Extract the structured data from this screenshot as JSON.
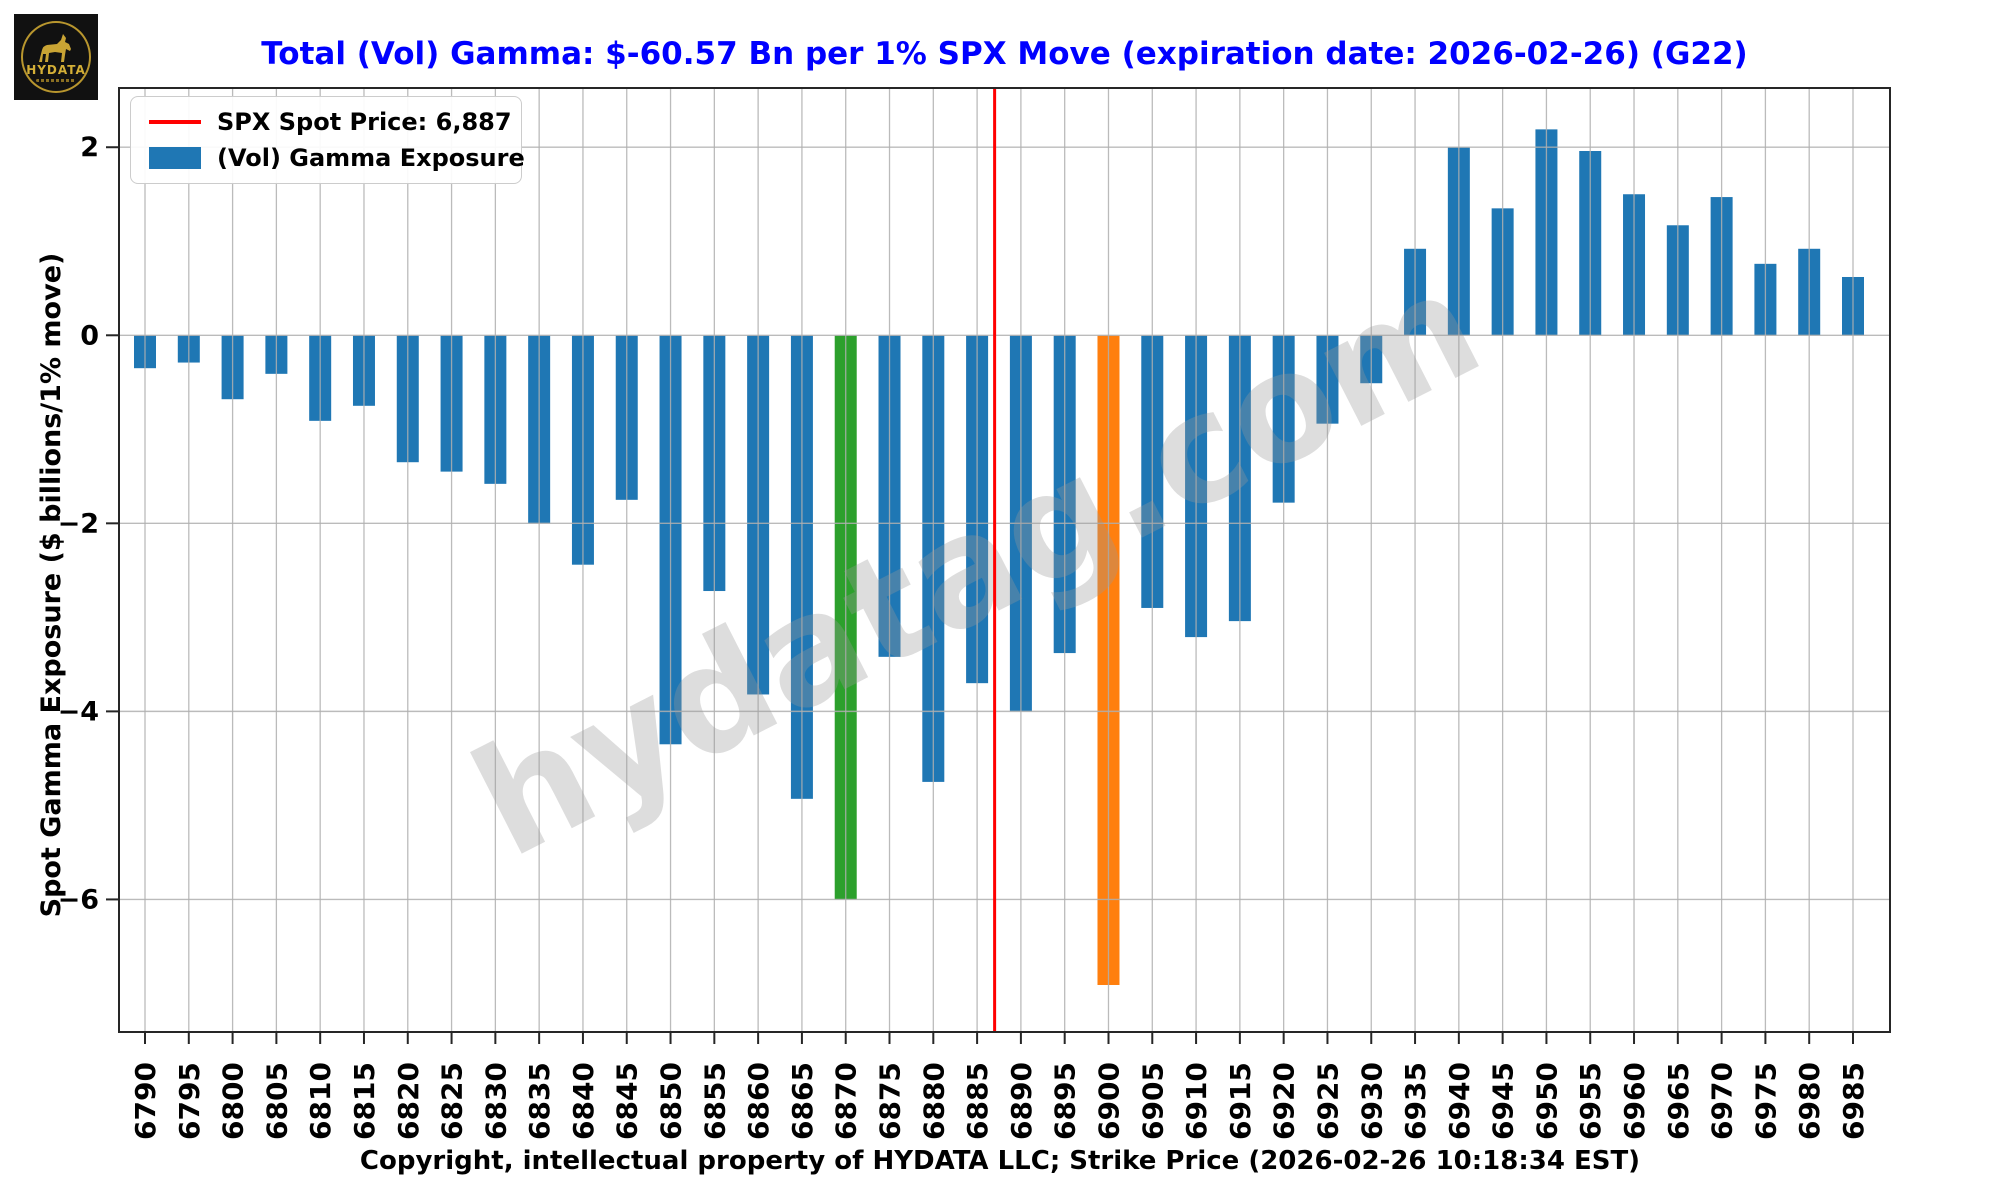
{
  "logo": {
    "brand": "HYDATA"
  },
  "header": {
    "title": "Total (Vol) Gamma: $-60.57 Bn per 1% SPX Move (expiration date: 2026-02-26) (G22)",
    "title_color": "#0000ff"
  },
  "legend": {
    "items": [
      {
        "label": "SPX Spot Price: 6,887",
        "marker": "line",
        "color": "#ff0000"
      },
      {
        "label": "(Vol) Gamma Exposure",
        "marker": "rect",
        "color": "#1f77b4"
      }
    ]
  },
  "watermark": {
    "text": "hydatag.com"
  },
  "footer": {
    "caption": "Copyright, intellectual property of HYDATA LLC; Strike Price (2026-02-26 10:18:34 EST)"
  },
  "colors": {
    "bar_default": "#1f77b4",
    "bar_green": "#2ca02c",
    "bar_orange": "#ff7f0e",
    "spot_line": "#ff0000",
    "grid": "#b0b0b0",
    "spine": "#262626",
    "watermark": "#9a9a9a"
  },
  "chart_data": {
    "type": "bar",
    "title": "Total (Vol) Gamma: $-60.57 Bn per 1% SPX Move (expiration date: 2026-02-26) (G22)",
    "xlabel": "Copyright, intellectual property of HYDATA LLC; Strike Price (2026-02-26 10:18:34 EST)",
    "ylabel": "Spot Gamma Exposure ($ billions/1% move)",
    "categories": [
      "6790",
      "6795",
      "6800",
      "6805",
      "6810",
      "6815",
      "6820",
      "6825",
      "6830",
      "6835",
      "6840",
      "6845",
      "6850",
      "6855",
      "6860",
      "6865",
      "6870",
      "6875",
      "6880",
      "6885",
      "6890",
      "6895",
      "6900",
      "6905",
      "6910",
      "6915",
      "6920",
      "6925",
      "6930",
      "6935",
      "6940",
      "6945",
      "6950",
      "6955",
      "6960",
      "6965",
      "6970",
      "6975",
      "6980",
      "6985"
    ],
    "values": [
      -0.35,
      -0.29,
      -0.68,
      -0.41,
      -0.91,
      -0.75,
      -1.35,
      -1.45,
      -1.58,
      -2.0,
      -2.44,
      -1.75,
      -4.35,
      -2.72,
      -3.82,
      -4.93,
      -6.0,
      -3.42,
      -4.75,
      -3.7,
      -4.0,
      -3.38,
      -6.91,
      -2.9,
      -3.21,
      -3.04,
      -1.78,
      -0.94,
      -0.51,
      0.92,
      2.0,
      1.35,
      2.19,
      1.96,
      1.5,
      1.17,
      1.47,
      0.76,
      0.92,
      0.62
    ],
    "highlight_bars": {
      "6870": "#2ca02c",
      "6900": "#ff7f0e"
    },
    "spot_line": {
      "x_value": 6887,
      "label": "SPX Spot Price: 6,887",
      "color": "#ff0000"
    },
    "yticks": [
      2,
      0,
      -2,
      -4,
      -6
    ],
    "ylim": [
      -7.41,
      2.63
    ],
    "grid": true,
    "legend_position": "upper left",
    "bar_color": "#1f77b4"
  }
}
